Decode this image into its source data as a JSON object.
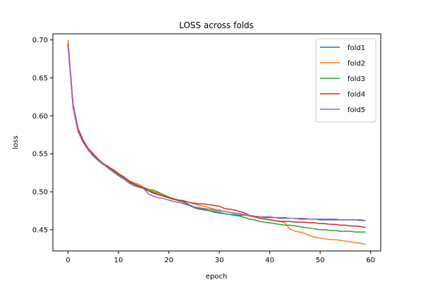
{
  "chart_data": {
    "type": "line",
    "title": "LOSS across folds",
    "xlabel": "epoch",
    "ylabel": "loss",
    "xlim": [
      -3,
      62
    ],
    "ylim": [
      0.422,
      0.708
    ],
    "xticks": [
      0,
      10,
      20,
      30,
      40,
      50,
      60
    ],
    "yticks": [
      0.45,
      0.5,
      0.55,
      0.6,
      0.65,
      0.7
    ],
    "grid": false,
    "legend": "top-right",
    "series": [
      {
        "name": "fold1",
        "color": "#1f77b4",
        "values": [
          0.695,
          0.612,
          0.58,
          0.566,
          0.556,
          0.548,
          0.541,
          0.536,
          0.532,
          0.527,
          0.522,
          0.518,
          0.513,
          0.51,
          0.507,
          0.504,
          0.501,
          0.499,
          0.496,
          0.494,
          0.492,
          0.49,
          0.489,
          0.487,
          0.483,
          0.48,
          0.478,
          0.477,
          0.475,
          0.473,
          0.472,
          0.471,
          0.47,
          0.47,
          0.469,
          0.469,
          0.468,
          0.467,
          0.467,
          0.466,
          0.466,
          0.466,
          0.465,
          0.465,
          0.465,
          0.465,
          0.464,
          0.464,
          0.464,
          0.464,
          0.463,
          0.463,
          0.463,
          0.463,
          0.463,
          0.463,
          0.463,
          0.463,
          0.463,
          0.462
        ]
      },
      {
        "name": "fold2",
        "color": "#ff7f0e",
        "values": [
          0.7,
          0.614,
          0.582,
          0.567,
          0.557,
          0.549,
          0.543,
          0.537,
          0.533,
          0.528,
          0.523,
          0.519,
          0.514,
          0.512,
          0.51,
          0.506,
          0.503,
          0.5,
          0.498,
          0.495,
          0.493,
          0.491,
          0.489,
          0.488,
          0.486,
          0.484,
          0.482,
          0.481,
          0.479,
          0.477,
          0.476,
          0.474,
          0.473,
          0.472,
          0.471,
          0.469,
          0.468,
          0.467,
          0.465,
          0.464,
          0.463,
          0.462,
          0.461,
          0.459,
          0.451,
          0.448,
          0.447,
          0.445,
          0.442,
          0.44,
          0.439,
          0.438,
          0.437,
          0.437,
          0.436,
          0.435,
          0.434,
          0.433,
          0.432,
          0.431
        ]
      },
      {
        "name": "fold3",
        "color": "#2ca02c",
        "values": [
          0.696,
          0.613,
          0.581,
          0.565,
          0.555,
          0.547,
          0.541,
          0.536,
          0.532,
          0.528,
          0.523,
          0.519,
          0.515,
          0.511,
          0.508,
          0.505,
          0.503,
          0.502,
          0.499,
          0.496,
          0.493,
          0.49,
          0.488,
          0.486,
          0.482,
          0.479,
          0.477,
          0.476,
          0.475,
          0.474,
          0.473,
          0.471,
          0.47,
          0.469,
          0.468,
          0.466,
          0.464,
          0.463,
          0.461,
          0.46,
          0.459,
          0.458,
          0.457,
          0.456,
          0.456,
          0.455,
          0.454,
          0.453,
          0.452,
          0.451,
          0.45,
          0.45,
          0.449,
          0.449,
          0.448,
          0.448,
          0.448,
          0.447,
          0.447,
          0.447
        ]
      },
      {
        "name": "fold4",
        "color": "#d62728",
        "values": [
          0.694,
          0.615,
          0.583,
          0.568,
          0.557,
          0.55,
          0.543,
          0.537,
          0.533,
          0.529,
          0.524,
          0.52,
          0.515,
          0.51,
          0.507,
          0.505,
          0.501,
          0.498,
          0.496,
          0.494,
          0.492,
          0.49,
          0.489,
          0.488,
          0.486,
          0.485,
          0.484,
          0.484,
          0.483,
          0.482,
          0.481,
          0.478,
          0.477,
          0.476,
          0.474,
          0.472,
          0.469,
          0.467,
          0.465,
          0.464,
          0.463,
          0.462,
          0.461,
          0.461,
          0.461,
          0.46,
          0.46,
          0.46,
          0.459,
          0.459,
          0.458,
          0.458,
          0.457,
          0.457,
          0.456,
          0.456,
          0.455,
          0.455,
          0.454,
          0.453
        ]
      },
      {
        "name": "fold5",
        "color": "#9467bd",
        "values": [
          0.693,
          0.611,
          0.579,
          0.565,
          0.555,
          0.548,
          0.542,
          0.536,
          0.531,
          0.526,
          0.521,
          0.517,
          0.512,
          0.508,
          0.506,
          0.504,
          0.497,
          0.494,
          0.492,
          0.491,
          0.489,
          0.487,
          0.486,
          0.484,
          0.482,
          0.48,
          0.479,
          0.478,
          0.477,
          0.476,
          0.475,
          0.474,
          0.473,
          0.472,
          0.471,
          0.47,
          0.469,
          0.468,
          0.467,
          0.467,
          0.467,
          0.466,
          0.466,
          0.466,
          0.465,
          0.465,
          0.465,
          0.465,
          0.464,
          0.464,
          0.464,
          0.464,
          0.464,
          0.464,
          0.463,
          0.463,
          0.463,
          0.463,
          0.462,
          0.462
        ]
      }
    ]
  }
}
